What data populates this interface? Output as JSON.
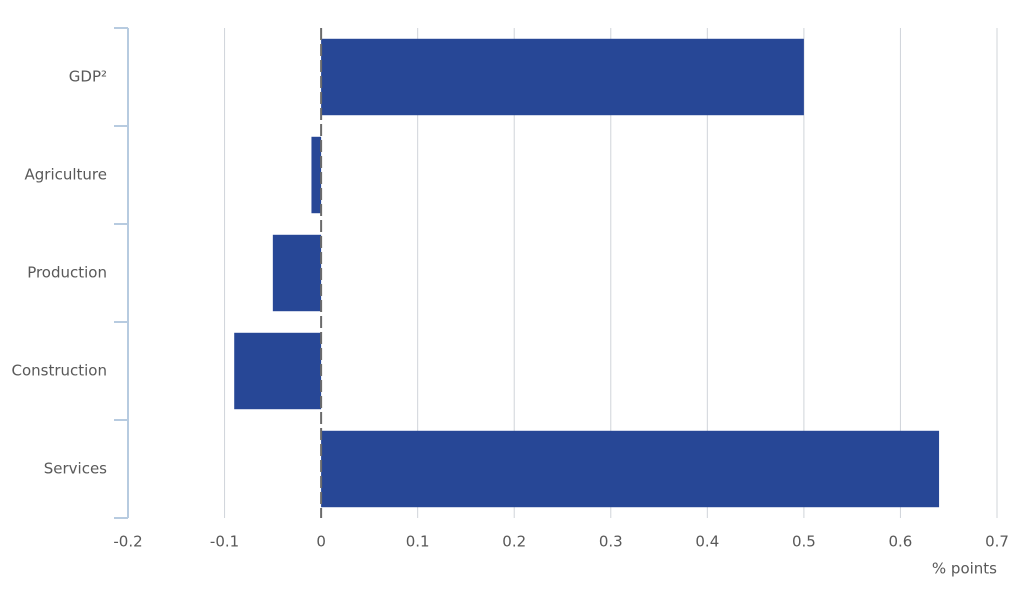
{
  "chart_data": {
    "type": "hbar",
    "categories": [
      "GDP²",
      "Agriculture",
      "Production",
      "Construction",
      "Services"
    ],
    "values": [
      0.5,
      -0.01,
      -0.05,
      -0.09,
      0.64
    ],
    "color": "#274796",
    "xlabel": "% points",
    "xlim": [
      -0.2,
      0.7
    ],
    "xticks": [
      -0.2,
      -0.1,
      0,
      0.1,
      0.2,
      0.3,
      0.4,
      0.5,
      0.6,
      0.7
    ],
    "grid": true
  }
}
